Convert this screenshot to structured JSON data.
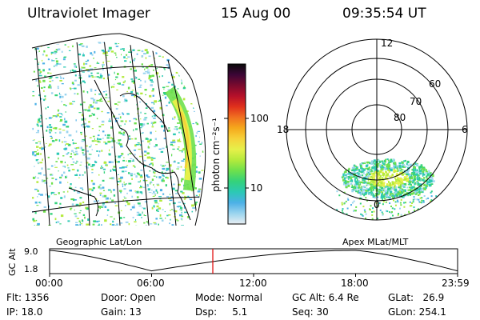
{
  "header": {
    "instrument": "Ultraviolet Imager",
    "date": "15 Aug 00",
    "time": "09:35:54 UT"
  },
  "colorbar": {
    "unit_label": "photon cm⁻²s⁻¹",
    "ticks": [
      "100",
      "10"
    ],
    "colors": [
      "#0a0a0a",
      "#3b0636",
      "#7a0a2e",
      "#b5102a",
      "#e0301c",
      "#f07020",
      "#f5a81c",
      "#f6d23a",
      "#e6f04a",
      "#b4ea3c",
      "#6ee04c",
      "#34d27a",
      "#2cc9b4",
      "#4cb0e6",
      "#9ad4ee",
      "#e8eef2"
    ]
  },
  "geo_panel": {
    "label": "Geographic Lat/Lon"
  },
  "polar_panel": {
    "label": "Apex MLat/MLT",
    "mlt_labels": {
      "top": "12",
      "left": "18",
      "right": "6",
      "bottom": "0"
    },
    "lat_labels": [
      "60",
      "70",
      "80"
    ]
  },
  "timeline": {
    "ylabel": "GC Alt",
    "yticks": [
      "9.0",
      "1.8"
    ],
    "xticks": [
      "00:00",
      "06:00",
      "12:00",
      "18:00",
      "23:59"
    ],
    "current_marker_hours": 9.6
  },
  "status": {
    "flt": "Flt: 1356",
    "ip": "IP: 18.0",
    "door": "Door: Open",
    "gain": "Gain: 13",
    "mode": "Mode: Normal",
    "dsp": "Dsp:     5.1",
    "gcalt": "GC Alt: 6.4 Re",
    "seq": "Seq: 30",
    "glat": "GLat:   26.9",
    "glon": "GLon: 254.1"
  }
}
